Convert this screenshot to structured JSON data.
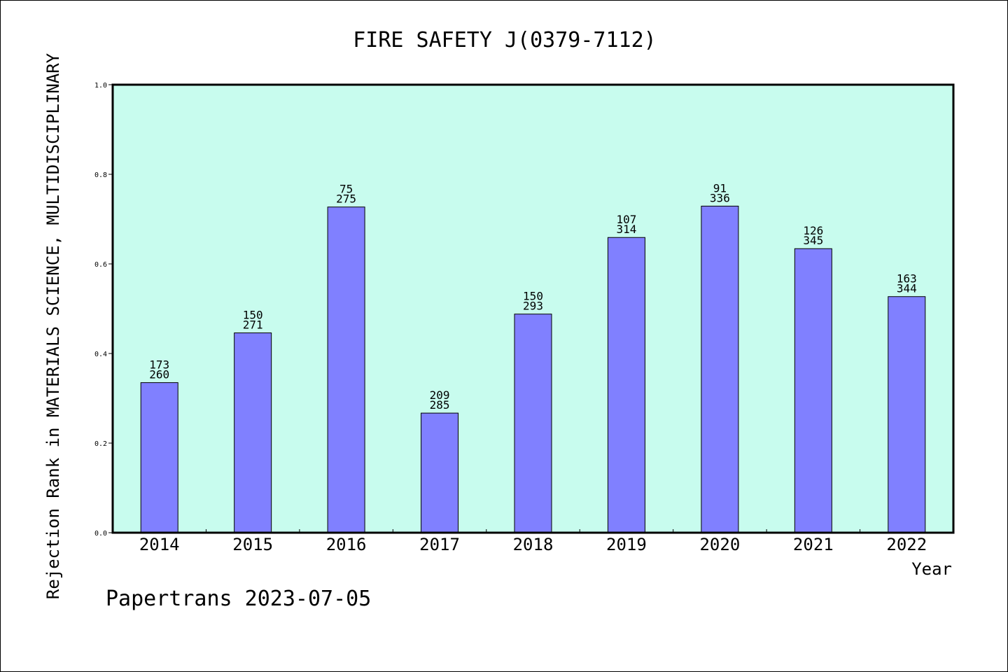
{
  "chart_data": {
    "type": "bar",
    "title": "FIRE SAFETY J(0379-7112)",
    "xlabel": "Year",
    "ylabel": "Rejection Rank in MATERIALS SCIENCE, MULTIDISCIPLINARY",
    "ylim": [
      0,
      1.0
    ],
    "yticks": [
      "0.0",
      "0.2",
      "0.4",
      "0.6",
      "0.8",
      "1.0"
    ],
    "grid": false,
    "categories": [
      "2014",
      "2015",
      "2016",
      "2017",
      "2018",
      "2019",
      "2020",
      "2021",
      "2022"
    ],
    "values": [
      0.335,
      0.446,
      0.727,
      0.267,
      0.488,
      0.659,
      0.729,
      0.634,
      0.527
    ],
    "labels_top": [
      "173",
      "150",
      "75",
      "209",
      "150",
      "107",
      "91",
      "126",
      "163"
    ],
    "labels_bottom": [
      "260",
      "271",
      "275",
      "285",
      "293",
      "314",
      "336",
      "345",
      "344"
    ],
    "colors": {
      "plot_background": "#c8fcee",
      "bar_fill": "#8080ff",
      "bar_stroke": "#000000"
    }
  },
  "footer": "Papertrans 2023-07-05"
}
